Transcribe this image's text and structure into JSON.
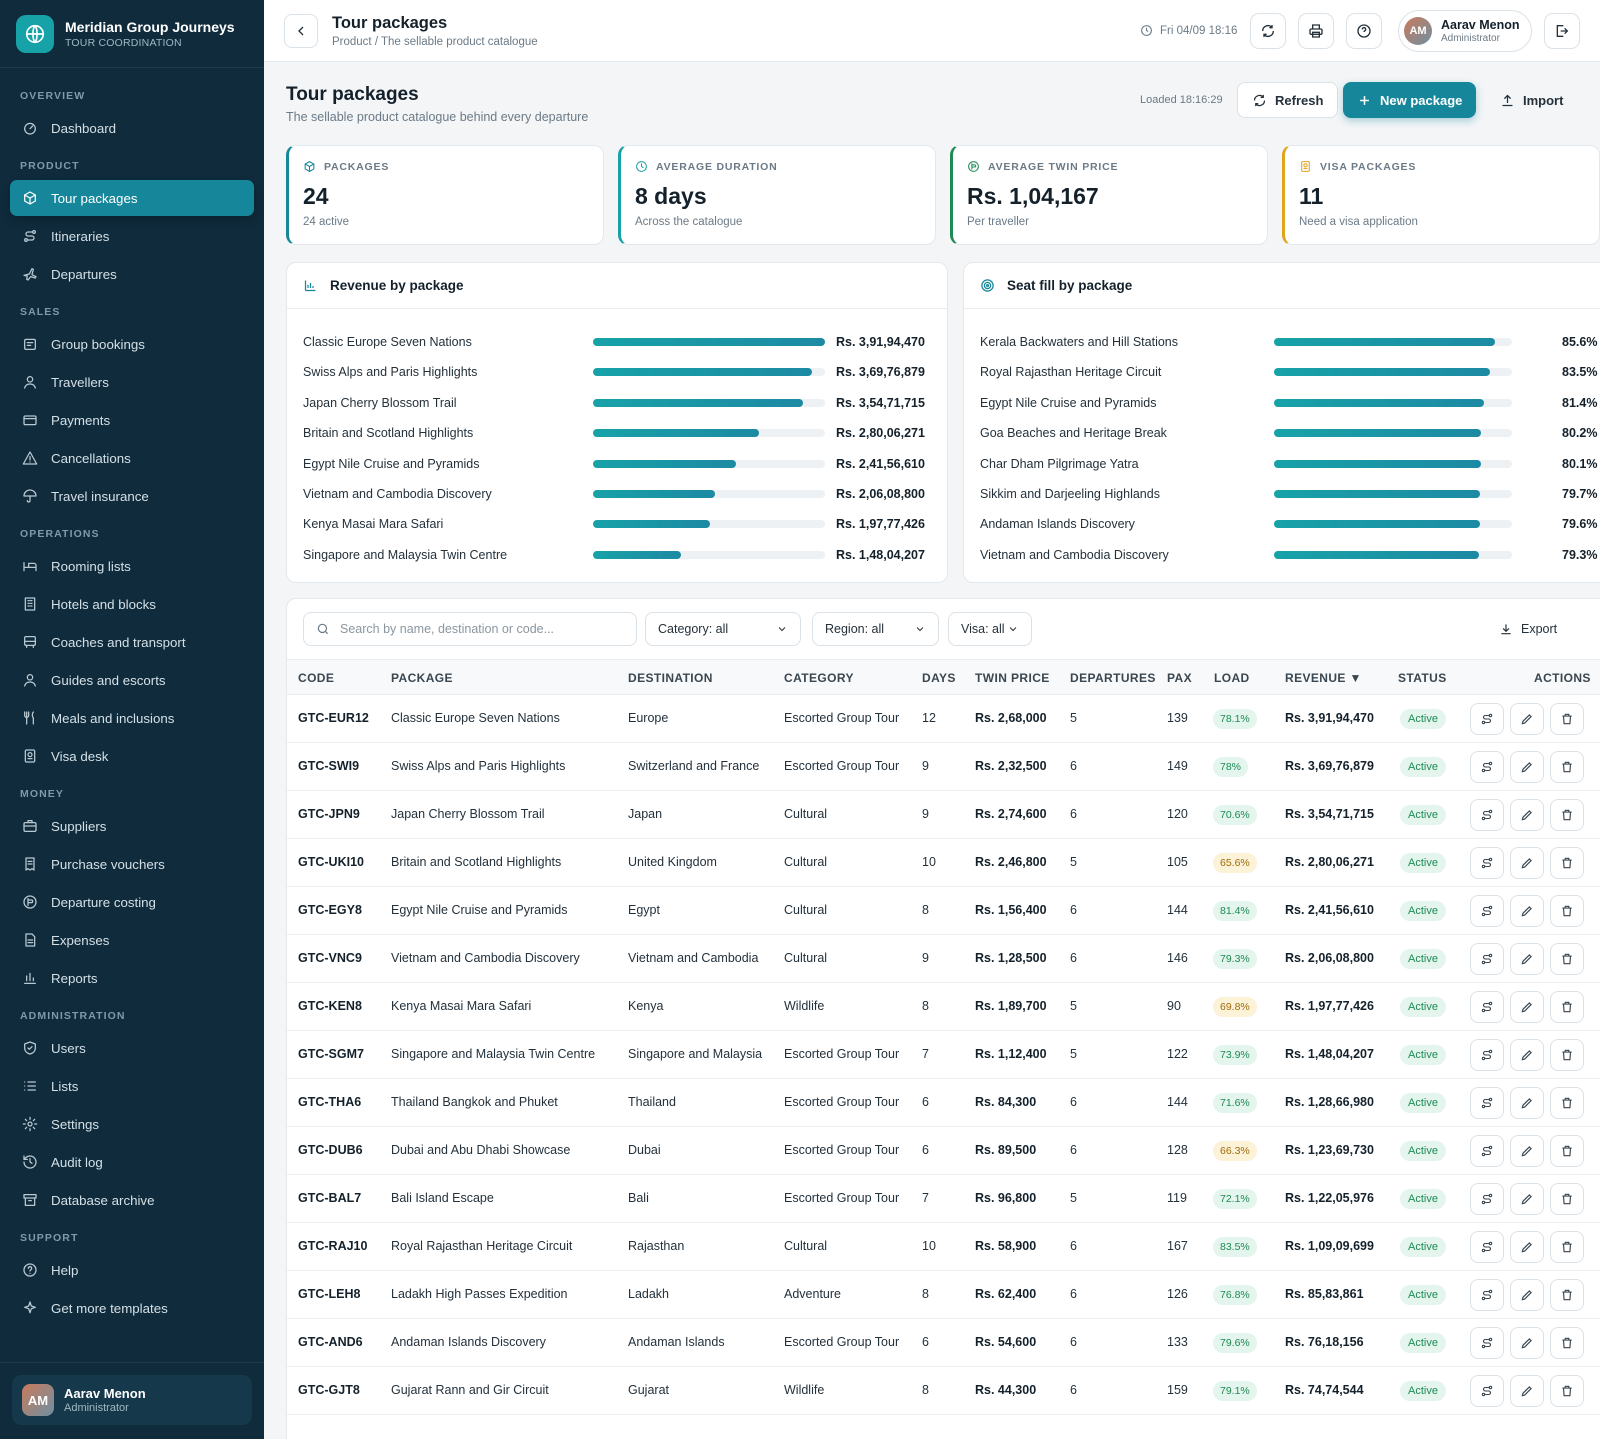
{
  "brand": {
    "name": "Meridian Group Journeys",
    "sub": "TOUR COORDINATION"
  },
  "nav": [
    {
      "section": "OVERVIEW",
      "items": [
        {
          "label": "Dashboard",
          "icon": "gauge-icon"
        }
      ]
    },
    {
      "section": "PRODUCT",
      "items": [
        {
          "label": "Tour packages",
          "icon": "package-icon",
          "active": true
        },
        {
          "label": "Itineraries",
          "icon": "route-icon"
        },
        {
          "label": "Departures",
          "icon": "plane-icon"
        }
      ]
    },
    {
      "section": "SALES",
      "items": [
        {
          "label": "Group bookings",
          "icon": "clipboard-icon"
        },
        {
          "label": "Travellers",
          "icon": "user-icon"
        },
        {
          "label": "Payments",
          "icon": "card-icon"
        },
        {
          "label": "Cancellations",
          "icon": "warning-icon"
        },
        {
          "label": "Travel insurance",
          "icon": "umbrella-icon"
        }
      ]
    },
    {
      "section": "OPERATIONS",
      "items": [
        {
          "label": "Rooming lists",
          "icon": "bed-icon"
        },
        {
          "label": "Hotels and blocks",
          "icon": "building-icon"
        },
        {
          "label": "Coaches and transport",
          "icon": "bus-icon"
        },
        {
          "label": "Guides and escorts",
          "icon": "user-icon"
        },
        {
          "label": "Meals and inclusions",
          "icon": "utensils-icon"
        },
        {
          "label": "Visa desk",
          "icon": "passport-icon"
        }
      ]
    },
    {
      "section": "MONEY",
      "items": [
        {
          "label": "Suppliers",
          "icon": "briefcase-icon"
        },
        {
          "label": "Purchase vouchers",
          "icon": "receipt-icon"
        },
        {
          "label": "Departure costing",
          "icon": "coin-icon"
        },
        {
          "label": "Expenses",
          "icon": "document-icon"
        },
        {
          "label": "Reports",
          "icon": "bar-chart-icon"
        }
      ]
    },
    {
      "section": "ADMINISTRATION",
      "items": [
        {
          "label": "Users",
          "icon": "shield-icon"
        },
        {
          "label": "Lists",
          "icon": "list-icon"
        },
        {
          "label": "Settings",
          "icon": "gear-icon"
        },
        {
          "label": "Audit log",
          "icon": "history-icon"
        },
        {
          "label": "Database archive",
          "icon": "archive-icon"
        }
      ]
    },
    {
      "section": "SUPPORT",
      "items": [
        {
          "label": "Help",
          "icon": "help-icon"
        },
        {
          "label": "Get more templates",
          "icon": "sparkle-icon"
        }
      ]
    }
  ],
  "user": {
    "initials": "AM",
    "name": "Aarav Menon",
    "role": "Administrator"
  },
  "topbar": {
    "title": "Tour packages",
    "crumb": "Product / The sellable product catalogue",
    "time": "Fri 04/09 18:16"
  },
  "page": {
    "title": "Tour packages",
    "subtitle": "The sellable product catalogue behind every departure",
    "loaded": "Loaded 18:16:29",
    "refresh": "Refresh",
    "new": "New package",
    "import": "Import"
  },
  "kpis": [
    {
      "label": "PACKAGES",
      "value": "24",
      "sub": "24 active",
      "color": "#16879a",
      "icon": "cube-icon"
    },
    {
      "label": "AVERAGE DURATION",
      "value": "8 days",
      "sub": "Across the catalogue",
      "color": "#17a2a8",
      "icon": "clock-icon"
    },
    {
      "label": "AVERAGE TWIN PRICE",
      "value": "Rs. 1,04,167",
      "sub": "Per traveller",
      "color": "#1f8a56",
      "icon": "coin-icon"
    },
    {
      "label": "VISA PACKAGES",
      "value": "11",
      "sub": "Need a visa application",
      "color": "#e0a31c",
      "icon": "passport-icon"
    }
  ],
  "revenue": {
    "title": "Revenue by package",
    "items": [
      {
        "label": "Classic Europe Seven Nations",
        "value": "Rs. 3,91,94,470",
        "amount": 39194470
      },
      {
        "label": "Swiss Alps and Paris Highlights",
        "value": "Rs. 3,69,76,879",
        "amount": 36976879
      },
      {
        "label": "Japan Cherry Blossom Trail",
        "value": "Rs. 3,54,71,715",
        "amount": 35471715
      },
      {
        "label": "Britain and Scotland Highlights",
        "value": "Rs. 2,80,06,271",
        "amount": 28006271
      },
      {
        "label": "Egypt Nile Cruise and Pyramids",
        "value": "Rs. 2,41,56,610",
        "amount": 24156610
      },
      {
        "label": "Vietnam and Cambodia Discovery",
        "value": "Rs. 2,06,08,800",
        "amount": 20608800
      },
      {
        "label": "Kenya Masai Mara Safari",
        "value": "Rs. 1,97,77,426",
        "amount": 19777426
      },
      {
        "label": "Singapore and Malaysia Twin Centre",
        "value": "Rs. 1,48,04,207",
        "amount": 14804207
      }
    ]
  },
  "seatfill": {
    "title": "Seat fill by package",
    "items": [
      {
        "label": "Kerala Backwaters and Hill Stations",
        "value": "85.6%",
        "pct": 85.6
      },
      {
        "label": "Royal Rajasthan Heritage Circuit",
        "value": "83.5%",
        "pct": 83.5
      },
      {
        "label": "Egypt Nile Cruise and Pyramids",
        "value": "81.4%",
        "pct": 81.4
      },
      {
        "label": "Goa Beaches and Heritage Break",
        "value": "80.2%",
        "pct": 80.2
      },
      {
        "label": "Char Dham Pilgrimage Yatra",
        "value": "80.1%",
        "pct": 80.1
      },
      {
        "label": "Sikkim and Darjeeling Highlands",
        "value": "79.7%",
        "pct": 79.7
      },
      {
        "label": "Andaman Islands Discovery",
        "value": "79.6%",
        "pct": 79.6
      },
      {
        "label": "Vietnam and Cambodia Discovery",
        "value": "79.3%",
        "pct": 79.3
      }
    ]
  },
  "filters": {
    "search_placeholder": "Search by name, destination or code...",
    "category": "Category: all",
    "region": "Region: all",
    "visa": "Visa: all",
    "export": "Export"
  },
  "columns": [
    "CODE",
    "PACKAGE",
    "DESTINATION",
    "CATEGORY",
    "DAYS",
    "TWIN PRICE",
    "DEPARTURES",
    "PAX",
    "LOAD",
    "REVENUE ▼",
    "STATUS",
    "ACTIONS"
  ],
  "rows": [
    {
      "code": "GTC-EUR12",
      "package": "Classic Europe Seven Nations",
      "destination": "Europe",
      "category": "Escorted Group Tour",
      "days": "12",
      "price": "Rs. 2,68,000",
      "departures": "5",
      "pax": "139",
      "load": "78.1%",
      "load_tone": "good",
      "revenue": "Rs. 3,91,94,470",
      "status": "Active"
    },
    {
      "code": "GTC-SWI9",
      "package": "Swiss Alps and Paris Highlights",
      "destination": "Switzerland and France",
      "category": "Escorted Group Tour",
      "days": "9",
      "price": "Rs. 2,32,500",
      "departures": "6",
      "pax": "149",
      "load": "78%",
      "load_tone": "good",
      "revenue": "Rs. 3,69,76,879",
      "status": "Active"
    },
    {
      "code": "GTC-JPN9",
      "package": "Japan Cherry Blossom Trail",
      "destination": "Japan",
      "category": "Cultural",
      "days": "9",
      "price": "Rs. 2,74,600",
      "departures": "6",
      "pax": "120",
      "load": "70.6%",
      "load_tone": "good",
      "revenue": "Rs. 3,54,71,715",
      "status": "Active"
    },
    {
      "code": "GTC-UKI10",
      "package": "Britain and Scotland Highlights",
      "destination": "United Kingdom",
      "category": "Cultural",
      "days": "10",
      "price": "Rs. 2,46,800",
      "departures": "5",
      "pax": "105",
      "load": "65.6%",
      "load_tone": "warn",
      "revenue": "Rs. 2,80,06,271",
      "status": "Active"
    },
    {
      "code": "GTC-EGY8",
      "package": "Egypt Nile Cruise and Pyramids",
      "destination": "Egypt",
      "category": "Cultural",
      "days": "8",
      "price": "Rs. 1,56,400",
      "departures": "6",
      "pax": "144",
      "load": "81.4%",
      "load_tone": "good",
      "revenue": "Rs. 2,41,56,610",
      "status": "Active"
    },
    {
      "code": "GTC-VNC9",
      "package": "Vietnam and Cambodia Discovery",
      "destination": "Vietnam and Cambodia",
      "category": "Cultural",
      "days": "9",
      "price": "Rs. 1,28,500",
      "departures": "6",
      "pax": "146",
      "load": "79.3%",
      "load_tone": "good",
      "revenue": "Rs. 2,06,08,800",
      "status": "Active"
    },
    {
      "code": "GTC-KEN8",
      "package": "Kenya Masai Mara Safari",
      "destination": "Kenya",
      "category": "Wildlife",
      "days": "8",
      "price": "Rs. 1,89,700",
      "departures": "5",
      "pax": "90",
      "load": "69.8%",
      "load_tone": "warn",
      "revenue": "Rs. 1,97,77,426",
      "status": "Active"
    },
    {
      "code": "GTC-SGM7",
      "package": "Singapore and Malaysia Twin Centre",
      "destination": "Singapore and Malaysia",
      "category": "Escorted Group Tour",
      "days": "7",
      "price": "Rs. 1,12,400",
      "departures": "5",
      "pax": "122",
      "load": "73.9%",
      "load_tone": "good",
      "revenue": "Rs. 1,48,04,207",
      "status": "Active"
    },
    {
      "code": "GTC-THA6",
      "package": "Thailand Bangkok and Phuket",
      "destination": "Thailand",
      "category": "Escorted Group Tour",
      "days": "6",
      "price": "Rs. 84,300",
      "departures": "6",
      "pax": "144",
      "load": "71.6%",
      "load_tone": "good",
      "revenue": "Rs. 1,28,66,980",
      "status": "Active"
    },
    {
      "code": "GTC-DUB6",
      "package": "Dubai and Abu Dhabi Showcase",
      "destination": "Dubai",
      "category": "Escorted Group Tour",
      "days": "6",
      "price": "Rs. 89,500",
      "departures": "6",
      "pax": "128",
      "load": "66.3%",
      "load_tone": "warn",
      "revenue": "Rs. 1,23,69,730",
      "status": "Active"
    },
    {
      "code": "GTC-BAL7",
      "package": "Bali Island Escape",
      "destination": "Bali",
      "category": "Escorted Group Tour",
      "days": "7",
      "price": "Rs. 96,800",
      "departures": "5",
      "pax": "119",
      "load": "72.1%",
      "load_tone": "good",
      "revenue": "Rs. 1,22,05,976",
      "status": "Active"
    },
    {
      "code": "GTC-RAJ10",
      "package": "Royal Rajasthan Heritage Circuit",
      "destination": "Rajasthan",
      "category": "Cultural",
      "days": "10",
      "price": "Rs. 58,900",
      "departures": "6",
      "pax": "167",
      "load": "83.5%",
      "load_tone": "good",
      "revenue": "Rs. 1,09,09,699",
      "status": "Active"
    },
    {
      "code": "GTC-LEH8",
      "package": "Ladakh High Passes Expedition",
      "destination": "Ladakh",
      "category": "Adventure",
      "days": "8",
      "price": "Rs. 62,400",
      "departures": "6",
      "pax": "126",
      "load": "76.8%",
      "load_tone": "good",
      "revenue": "Rs. 85,83,861",
      "status": "Active"
    },
    {
      "code": "GTC-AND6",
      "package": "Andaman Islands Discovery",
      "destination": "Andaman Islands",
      "category": "Escorted Group Tour",
      "days": "6",
      "price": "Rs. 54,600",
      "departures": "6",
      "pax": "133",
      "load": "79.6%",
      "load_tone": "good",
      "revenue": "Rs. 76,18,156",
      "status": "Active"
    },
    {
      "code": "GTC-GJT8",
      "package": "Gujarat Rann and Gir Circuit",
      "destination": "Gujarat",
      "category": "Wildlife",
      "days": "8",
      "price": "Rs. 44,300",
      "departures": "6",
      "pax": "159",
      "load": "79.1%",
      "load_tone": "good",
      "revenue": "Rs. 74,74,544",
      "status": "Active"
    }
  ]
}
